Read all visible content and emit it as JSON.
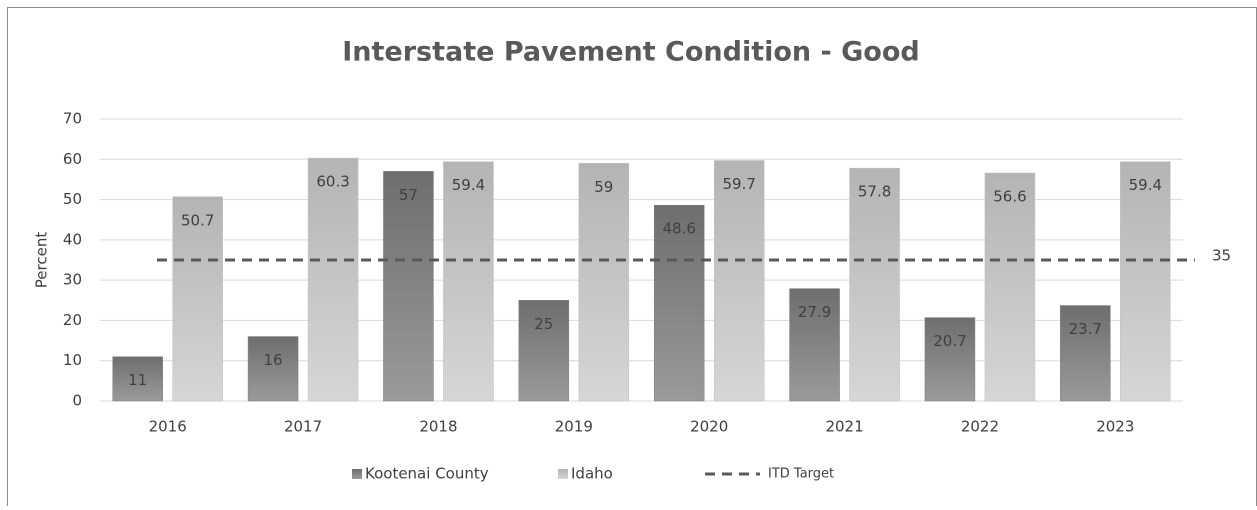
{
  "chart_data": {
    "type": "bar",
    "title": "Interstate Pavement Condition - Good",
    "y_label": "Percent",
    "categories": [
      "2016",
      "2017",
      "2018",
      "2019",
      "2020",
      "2021",
      "2022",
      "2023"
    ],
    "series": [
      {
        "name": "Kootenai County",
        "color": "#7f7f7f",
        "values": [
          11,
          16,
          57,
          25,
          48.6,
          27.9,
          20.7,
          23.7
        ]
      },
      {
        "name": "Idaho",
        "color": "#c0c0c0",
        "values": [
          50.7,
          60.3,
          59.4,
          59,
          59.7,
          57.8,
          56.6,
          59.4
        ]
      }
    ],
    "target": {
      "name": "ITD Target",
      "value": 35,
      "color": "#595959"
    },
    "ylim": [
      0,
      70
    ],
    "yticks": [
      0,
      10,
      20,
      30,
      40,
      50,
      60,
      70
    ],
    "grid": true,
    "legend": "bottom"
  }
}
